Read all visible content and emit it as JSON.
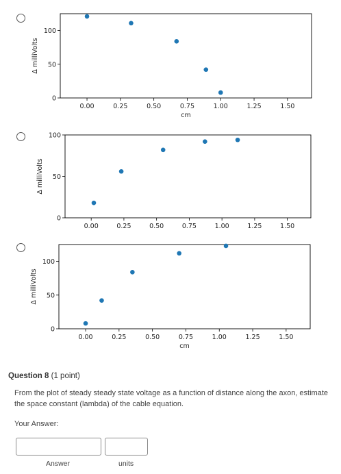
{
  "chart_data": [
    {
      "type": "scatter",
      "xlabel": "cm",
      "ylabel": "Δ milliVolts",
      "xlim": [
        -0.2,
        1.68
      ],
      "ylim": [
        0,
        125
      ],
      "xticks": [
        "0.00",
        "0.25",
        "0.50",
        "0.75",
        "1.00",
        "1.25",
        "1.50"
      ],
      "yticks": [
        "0",
        "50",
        "100"
      ],
      "x": [
        0.0,
        0.33,
        0.67,
        0.89,
        1.0
      ],
      "y": [
        121,
        111,
        84,
        42,
        8
      ]
    },
    {
      "type": "scatter",
      "xlabel": "",
      "ylabel": "Δ milliVolts",
      "xlim": [
        -0.2,
        1.68
      ],
      "ylim": [
        0,
        100
      ],
      "xticks": [
        "0.00",
        "0.25",
        "0.50",
        "0.75",
        "1.00",
        "1.25",
        "1.50"
      ],
      "yticks": [
        "0",
        "50",
        "100"
      ],
      "x": [
        0.02,
        0.23,
        0.55,
        0.87,
        1.12
      ],
      "y": [
        18,
        56,
        82,
        92,
        94
      ]
    },
    {
      "type": "scatter",
      "xlabel": "cm",
      "ylabel": "Δ milliVolts",
      "xlim": [
        -0.2,
        1.68
      ],
      "ylim": [
        0,
        125
      ],
      "xticks": [
        "0.00",
        "0.25",
        "0.50",
        "0.75",
        "1.00",
        "1.25",
        "1.50"
      ],
      "yticks": [
        "0",
        "50",
        "100"
      ],
      "x": [
        0.0,
        0.12,
        0.35,
        0.7,
        1.05
      ],
      "y": [
        8,
        42,
        84,
        112,
        123
      ]
    }
  ],
  "question": {
    "title": "Question 8",
    "points": "(1 point)",
    "text": "From the plot of steady steady state voltage as a function of distance along the axon, estimate the space constant (lambda) of the cable equation.",
    "your_answer_label": "Your Answer:",
    "answer_value": "",
    "units_value": "",
    "answer_label": "Answer",
    "units_label": "units"
  },
  "colors": {
    "point": "#1f77b4",
    "axis": "#000000"
  }
}
